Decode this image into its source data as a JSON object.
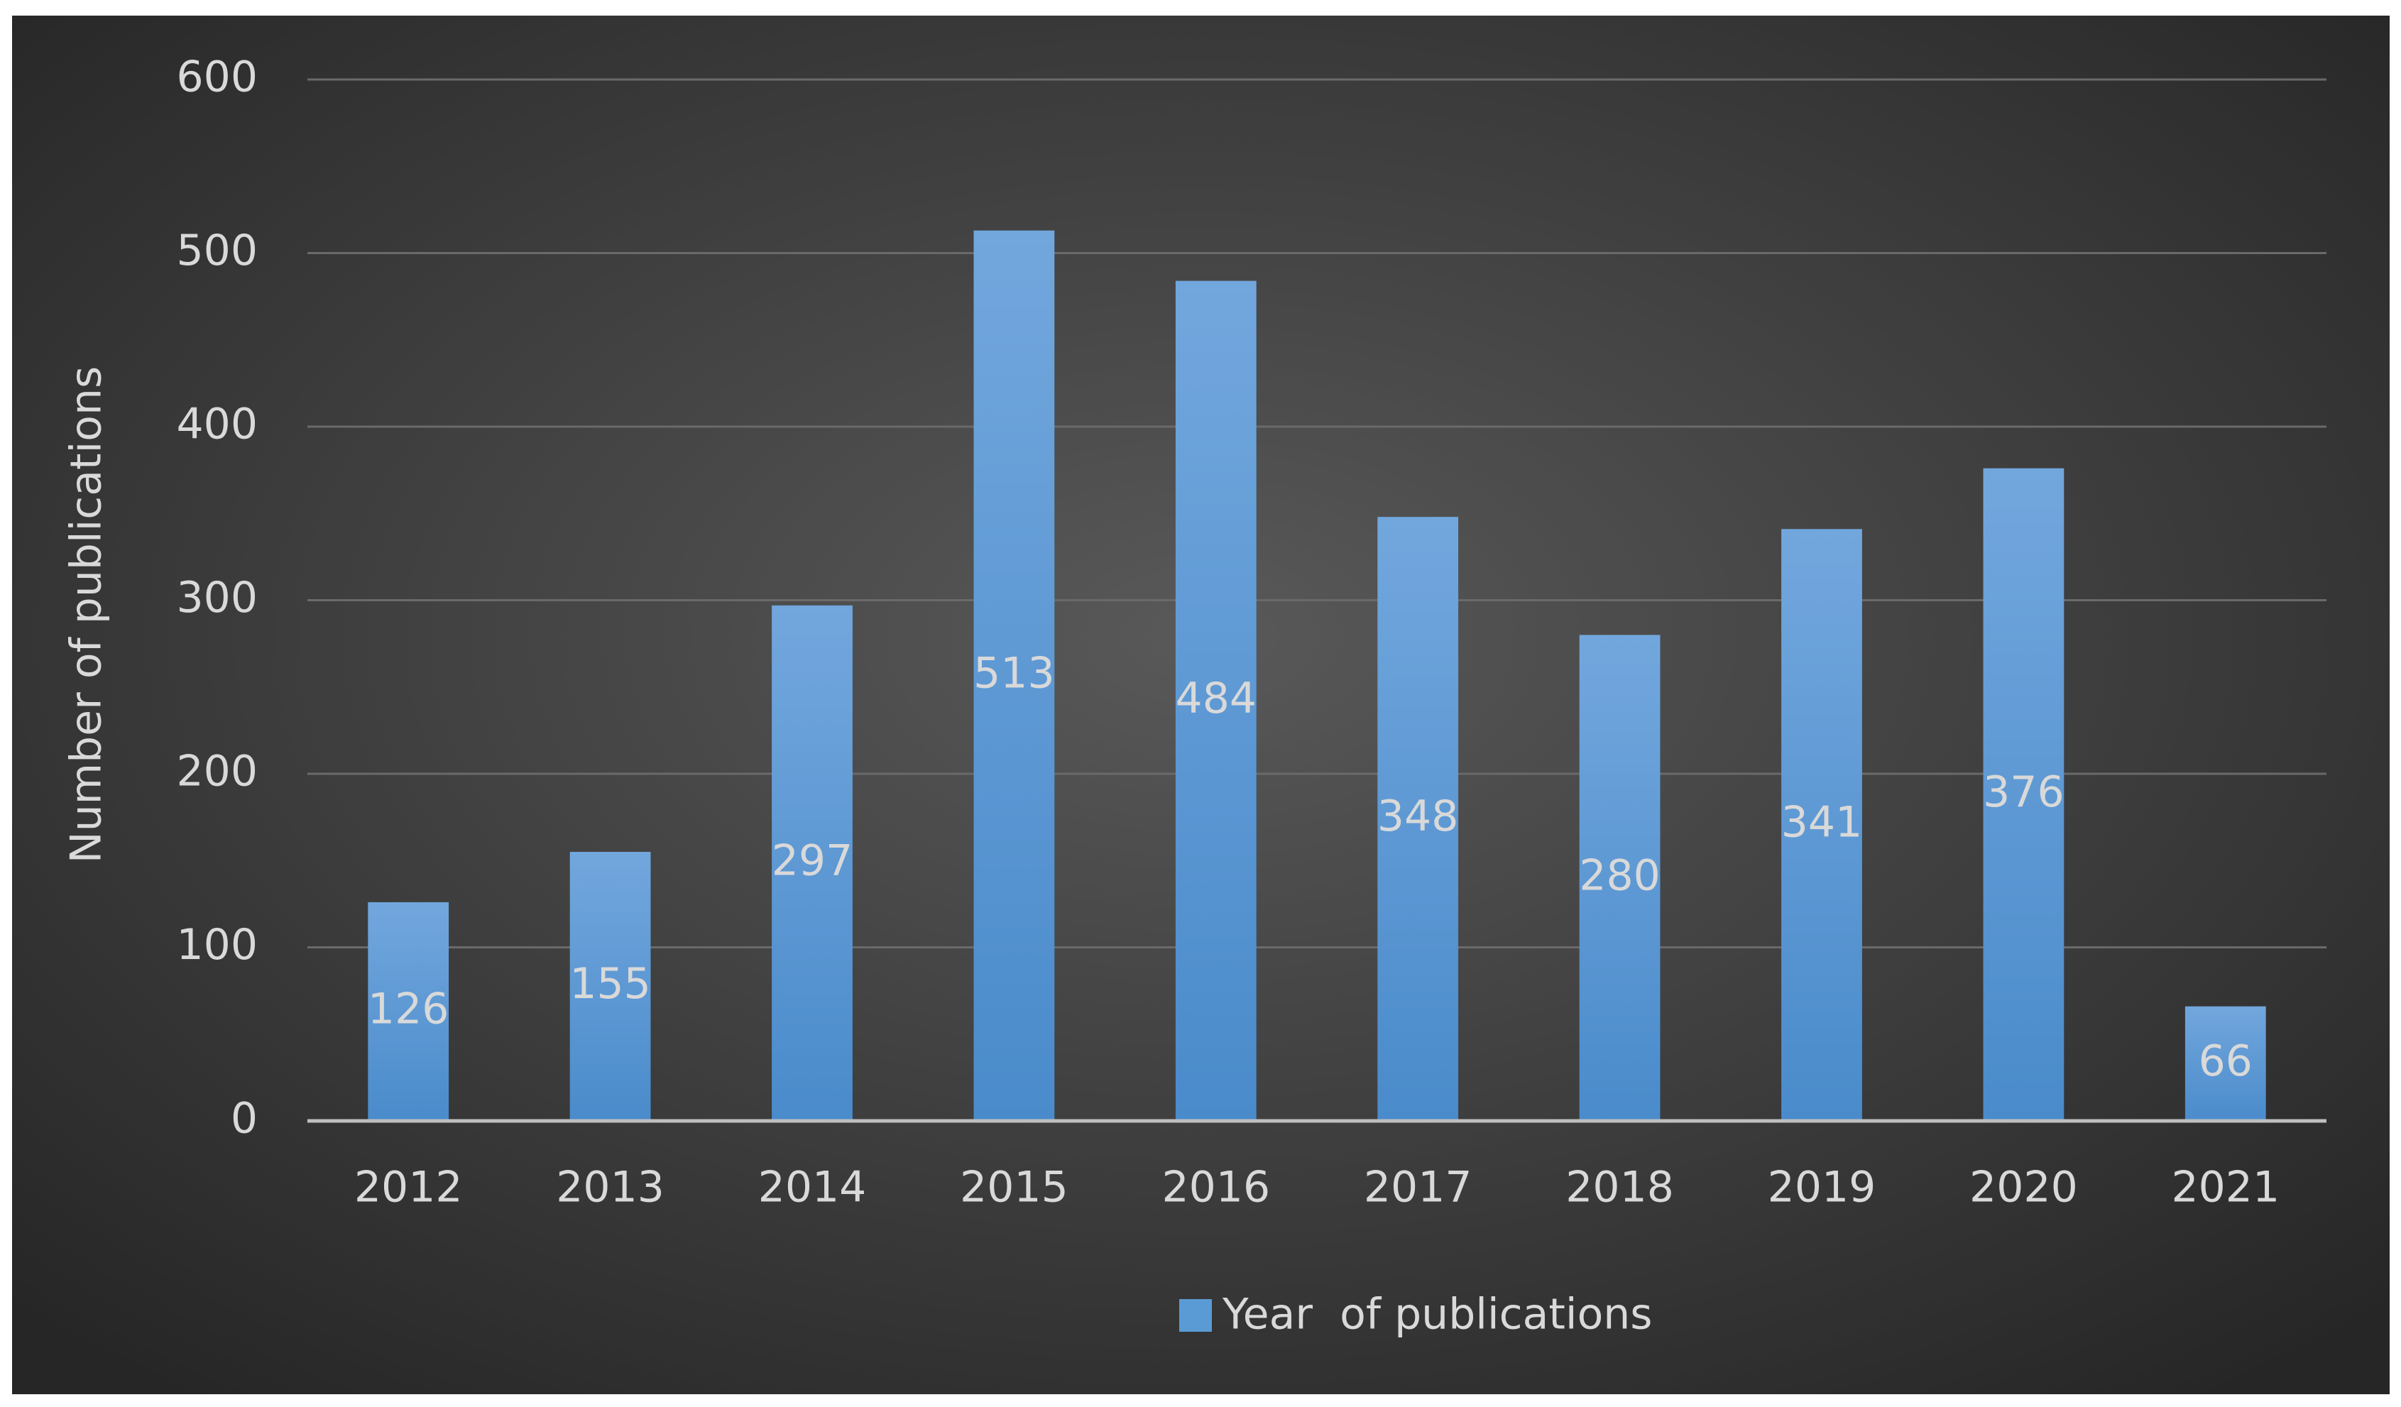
{
  "chart_data": {
    "type": "bar",
    "y_axis_label": "Number of publications",
    "categories": [
      "2012",
      "2013",
      "2014",
      "2015",
      "2016",
      "2017",
      "2018",
      "2019",
      "2020",
      "2021"
    ],
    "series": [
      {
        "name": "Year  of publications",
        "color": "#5b9bd5",
        "values": [
          126,
          155,
          297,
          513,
          484,
          348,
          280,
          341,
          376,
          66
        ]
      }
    ],
    "ylim": [
      0,
      600
    ],
    "yticks": [
      0,
      100,
      200,
      300,
      400,
      500,
      600
    ],
    "grid": true,
    "legend": "bottom",
    "data_labels": true
  }
}
